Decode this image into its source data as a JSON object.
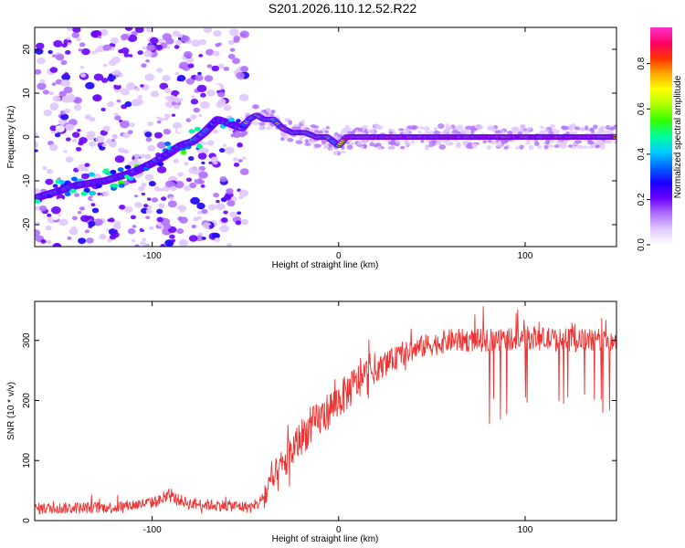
{
  "title": "S201.2026.110.12.52.R22",
  "top": {
    "type": "heatmap",
    "xlabel": "Height of straight line (km)",
    "ylabel": "Frequency (Hz)",
    "xlim": [
      -163,
      149
    ],
    "ylim": [
      -25,
      25
    ],
    "xticks": [
      -100,
      0,
      100
    ],
    "yticks": [
      -20,
      -10,
      0,
      10,
      20
    ],
    "ridge": [
      [
        -163,
        -14
      ],
      [
        -140,
        -11
      ],
      [
        -125,
        -10
      ],
      [
        -110,
        -8
      ],
      [
        -100,
        -6
      ],
      [
        -92,
        -4
      ],
      [
        -85,
        -2
      ],
      [
        -78,
        -1
      ],
      [
        -72,
        1
      ],
      [
        -65,
        4
      ],
      [
        -58,
        3
      ],
      [
        -52,
        2
      ],
      [
        -48,
        4
      ],
      [
        -44,
        5
      ],
      [
        -40,
        4
      ],
      [
        -35,
        4
      ],
      [
        -30,
        2
      ],
      [
        -25,
        1
      ],
      [
        -18,
        1
      ],
      [
        -12,
        0
      ],
      [
        -6,
        0
      ],
      [
        0,
        -2
      ],
      [
        4,
        0
      ],
      [
        10,
        0
      ],
      [
        20,
        0
      ],
      [
        40,
        0
      ],
      [
        60,
        0
      ],
      [
        80,
        0
      ],
      [
        100,
        0
      ],
      [
        120,
        0
      ],
      [
        149,
        0
      ]
    ]
  },
  "colorbar": {
    "label": "Normalized spectral amplitude",
    "ticks": [
      "0.0",
      "0.2",
      "0.4",
      "0.6",
      "0.8"
    ],
    "tick_values": [
      0,
      0.2,
      0.4,
      0.6,
      0.8
    ],
    "range": [
      0,
      0.96
    ],
    "colors": [
      "#ffffff",
      "#e0c8ff",
      "#b070ff",
      "#6a00ff",
      "#1a00ff",
      "#0066ff",
      "#00cfff",
      "#00ff99",
      "#33ff00",
      "#aaff00",
      "#ffff00",
      "#ffaa00",
      "#ff3300",
      "#ff0066",
      "#ff33cc"
    ]
  },
  "bottom": {
    "type": "line",
    "xlabel": "Height of straight line (km)",
    "ylabel": "SNR (10 * v/v)",
    "xlim": [
      -163,
      149
    ],
    "ylim": [
      0,
      365
    ],
    "xticks": [
      -100,
      0,
      100
    ],
    "yticks": [
      0,
      100,
      200,
      300
    ],
    "color": "#ee3333",
    "trend": [
      [
        -163,
        20
      ],
      [
        -120,
        22
      ],
      [
        -100,
        30
      ],
      [
        -90,
        40
      ],
      [
        -80,
        28
      ],
      [
        -60,
        25
      ],
      [
        -45,
        22
      ],
      [
        -40,
        40
      ],
      [
        -30,
        90
      ],
      [
        -20,
        140
      ],
      [
        -10,
        170
      ],
      [
        0,
        200
      ],
      [
        10,
        230
      ],
      [
        20,
        250
      ],
      [
        30,
        270
      ],
      [
        45,
        290
      ],
      [
        60,
        300
      ],
      [
        80,
        300
      ],
      [
        100,
        305
      ],
      [
        120,
        300
      ],
      [
        149,
        300
      ]
    ]
  }
}
